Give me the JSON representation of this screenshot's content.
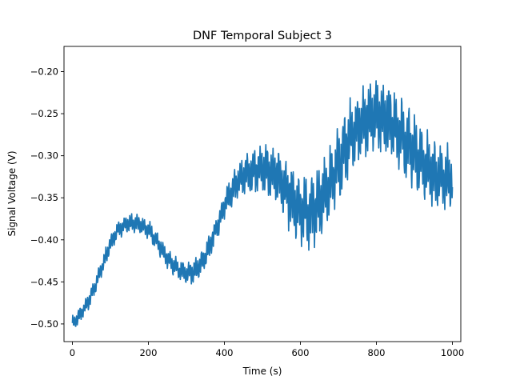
{
  "chart_data": {
    "type": "line",
    "title": "DNF Temporal Subject 3",
    "xlabel": "Time (s)",
    "ylabel": "Signal Voltage (V)",
    "xlim": [
      -22,
      1022
    ],
    "ylim": [
      -0.521,
      -0.17
    ],
    "xticks": [
      0,
      200,
      400,
      600,
      800,
      1000
    ],
    "xtick_labels": [
      "0",
      "200",
      "400",
      "600",
      "800",
      "1000"
    ],
    "yticks": [
      -0.5,
      -0.45,
      -0.4,
      -0.35,
      -0.3,
      -0.25,
      -0.2
    ],
    "ytick_labels": [
      "−0.50",
      "−0.45",
      "−0.40",
      "−0.35",
      "−0.30",
      "−0.25",
      "−0.20"
    ],
    "grid": false,
    "series": [
      {
        "color": "#1f77b4",
        "trend": {
          "x": [
            0,
            20,
            40,
            60,
            80,
            100,
            120,
            140,
            160,
            180,
            200,
            220,
            240,
            260,
            280,
            300,
            320,
            340,
            360,
            380,
            400,
            420,
            440,
            460,
            480,
            500,
            520,
            540,
            560,
            580,
            600,
            620,
            640,
            660,
            680,
            700,
            720,
            740,
            760,
            780,
            800,
            820,
            840,
            860,
            880,
            900,
            920,
            940,
            960,
            980,
            1000
          ],
          "y": [
            -0.5,
            -0.49,
            -0.475,
            -0.455,
            -0.43,
            -0.405,
            -0.388,
            -0.382,
            -0.38,
            -0.382,
            -0.388,
            -0.4,
            -0.415,
            -0.428,
            -0.436,
            -0.44,
            -0.438,
            -0.428,
            -0.41,
            -0.385,
            -0.36,
            -0.34,
            -0.328,
            -0.322,
            -0.318,
            -0.315,
            -0.318,
            -0.325,
            -0.34,
            -0.355,
            -0.365,
            -0.368,
            -0.362,
            -0.35,
            -0.33,
            -0.31,
            -0.29,
            -0.275,
            -0.262,
            -0.255,
            -0.25,
            -0.255,
            -0.262,
            -0.272,
            -0.285,
            -0.296,
            -0.308,
            -0.318,
            -0.325,
            -0.328,
            -0.328
          ]
        },
        "oscillation_amplitude": {
          "x": [
            0,
            100,
            200,
            300,
            400,
            500,
            600,
            700,
            800,
            900,
            1000
          ],
          "y": [
            0.008,
            0.01,
            0.01,
            0.012,
            0.015,
            0.028,
            0.038,
            0.04,
            0.042,
            0.04,
            0.035
          ]
        }
      }
    ]
  }
}
